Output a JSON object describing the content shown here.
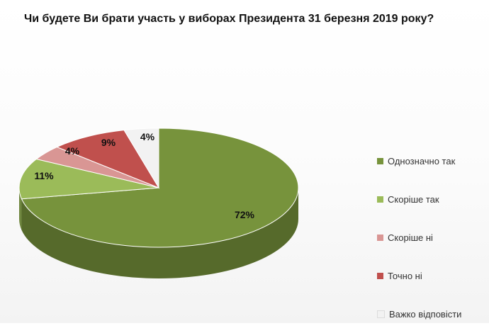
{
  "chart_data": {
    "type": "pie",
    "title": "Чи будете Ви брати участь у виборах Президента 31 березня 2019 року?",
    "categories": [
      "Однозначно так",
      "Скоріше  так",
      "Скоріше  ні",
      "Точно ні",
      "Важко відповісти"
    ],
    "values": [
      72,
      11,
      4,
      9,
      4
    ],
    "labels": [
      "72%",
      "11%",
      "4%",
      "9%",
      "4%"
    ],
    "colors": [
      "#77933c",
      "#9bbb59",
      "#d99694",
      "#c0504d",
      "#f2f2f2"
    ],
    "legend": "right",
    "style": "3d"
  }
}
